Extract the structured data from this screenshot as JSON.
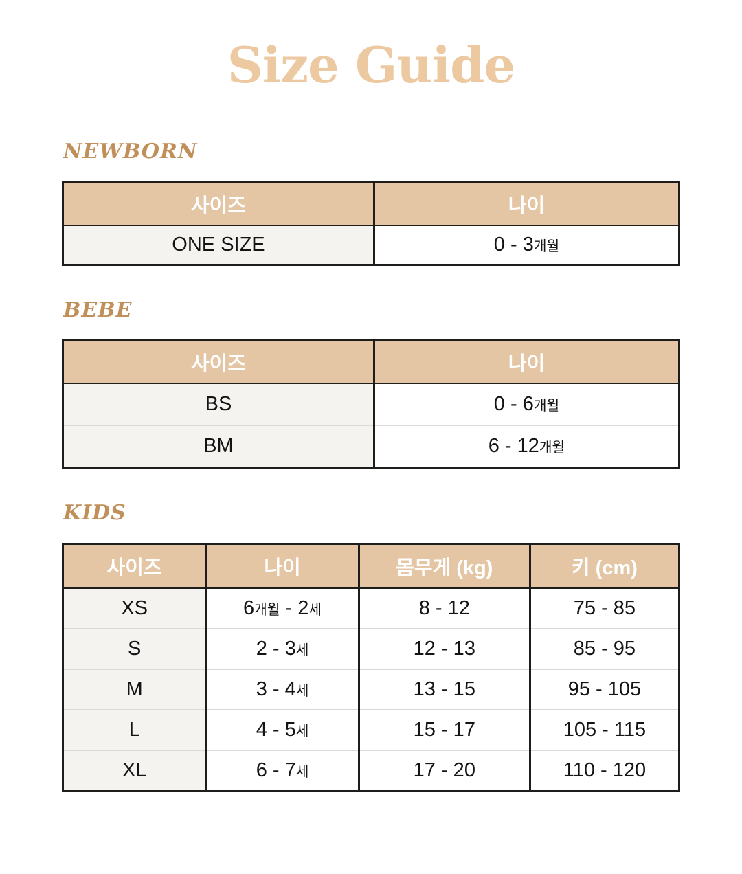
{
  "page": {
    "title": "Size Guide"
  },
  "colors": {
    "title": "#ecc9a0",
    "section_heading": "#c1905a",
    "table_header_bg": "#e4c5a4",
    "table_header_text": "#ffffff",
    "first_column_bg": "#f4f3f0",
    "table_border": "#1f1d1b",
    "row_divider": "#dbd9d6"
  },
  "sections": [
    {
      "heading": "NEWBORN",
      "table": {
        "headers": [
          "사이즈",
          "나이"
        ],
        "rows": [
          [
            "ONE SIZE",
            "0 - 3개월"
          ]
        ]
      }
    },
    {
      "heading": "BEBE",
      "table": {
        "headers": [
          "사이즈",
          "나이"
        ],
        "rows": [
          [
            "BS",
            "0 - 6개월"
          ],
          [
            "BM",
            "6 - 12개월"
          ]
        ]
      }
    },
    {
      "heading": "KIDS",
      "table": {
        "headers": [
          "사이즈",
          "나이",
          "몸무게 (kg)",
          "키 (cm)"
        ],
        "rows": [
          [
            "XS",
            "6개월 - 2세",
            "8 - 12",
            "75 - 85"
          ],
          [
            "S",
            "2 - 3세",
            "12 - 13",
            "85 - 95"
          ],
          [
            "M",
            "3 - 4세",
            "13 - 15",
            "95 - 105"
          ],
          [
            "L",
            "4 - 5세",
            "15 - 17",
            "105 - 115"
          ],
          [
            "XL",
            "6 - 7세",
            "17 - 20",
            "110 - 120"
          ]
        ]
      }
    }
  ]
}
